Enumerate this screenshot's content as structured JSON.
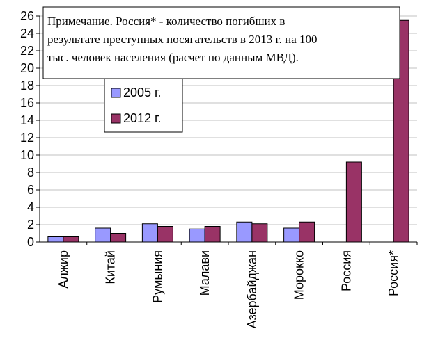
{
  "chart_data": {
    "type": "bar",
    "categories": [
      "Алжир",
      "Китай",
      "Румыния",
      "Малави",
      "Азербайджан",
      "Морокко",
      "Россия",
      "Россия*"
    ],
    "series": [
      {
        "name": "2005  г.",
        "values": [
          0.6,
          1.6,
          2.1,
          1.5,
          2.3,
          1.6,
          null,
          null
        ],
        "color": "#9999ff"
      },
      {
        "name": "2012 г.",
        "values": [
          0.6,
          1.0,
          1.8,
          1.8,
          2.1,
          2.3,
          9.2,
          25.5
        ],
        "color": "#993366"
      }
    ],
    "ylim": [
      0,
      26
    ],
    "yticks": [
      "0",
      "2",
      "4",
      "6",
      "8",
      "10",
      "12",
      "14",
      "16",
      "18",
      "20",
      "22",
      "24",
      "26"
    ],
    "grid": true,
    "legend_position": "upper-left",
    "annotation": {
      "lines": [
        "Примечание. Россия* - количество погибших в",
        "результате преступных посягательств в 2013 г. на 100",
        "тыс. человек населения (расчет по данным МВД)."
      ]
    }
  }
}
